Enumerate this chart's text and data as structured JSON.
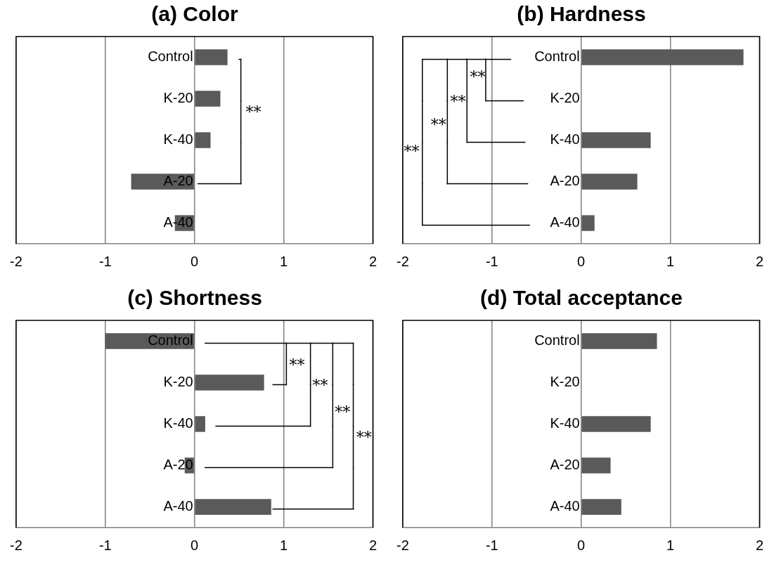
{
  "chart_data": [
    {
      "type": "bar",
      "title": "(a) Color",
      "orientation": "horizontal",
      "categories": [
        "Control",
        "K-20",
        "K-40",
        "A-20",
        "A-40"
      ],
      "values": [
        0.37,
        0.29,
        0.18,
        -0.71,
        -0.22
      ],
      "color": "#5a5a5a",
      "xlim": [
        -2,
        2
      ],
      "xticks": [
        -2,
        -1,
        0,
        1,
        2
      ],
      "grid": "x",
      "legend": false,
      "annotations": [
        "**"
      ]
    },
    {
      "type": "bar",
      "title": "(b) Hardness",
      "orientation": "horizontal",
      "categories": [
        "Control",
        "K-20",
        "K-40",
        "A-20",
        "A-40"
      ],
      "values": [
        1.82,
        0,
        0.78,
        0.63,
        0.15
      ],
      "color": "#5a5a5a",
      "xlim": [
        -2,
        2
      ],
      "xticks": [
        -2,
        -1,
        0,
        1,
        2
      ],
      "grid": "x",
      "legend": false,
      "annotations": [
        "**",
        "**",
        "**",
        "**"
      ]
    },
    {
      "type": "bar",
      "title": "(c) Shortness",
      "orientation": "horizontal",
      "categories": [
        "Control",
        "K-20",
        "K-40",
        "A-20",
        "A-40"
      ],
      "values": [
        -1.0,
        0.78,
        0.12,
        -0.11,
        0.86
      ],
      "color": "#5a5a5a",
      "xlim": [
        -2,
        2
      ],
      "xticks": [
        -2,
        -1,
        0,
        1,
        2
      ],
      "grid": "x",
      "legend": false,
      "annotations": [
        "**",
        "**",
        "**",
        "**"
      ]
    },
    {
      "type": "bar",
      "title": "(d) Total acceptance",
      "orientation": "horizontal",
      "categories": [
        "Control",
        "K-20",
        "K-40",
        "A-20",
        "A-40"
      ],
      "values": [
        0.85,
        0,
        0.78,
        0.33,
        0.45
      ],
      "color": "#5a5a5a",
      "xlim": [
        -2,
        2
      ],
      "xticks": [
        -2,
        -1,
        0,
        1,
        2
      ],
      "grid": "x",
      "legend": false
    }
  ]
}
